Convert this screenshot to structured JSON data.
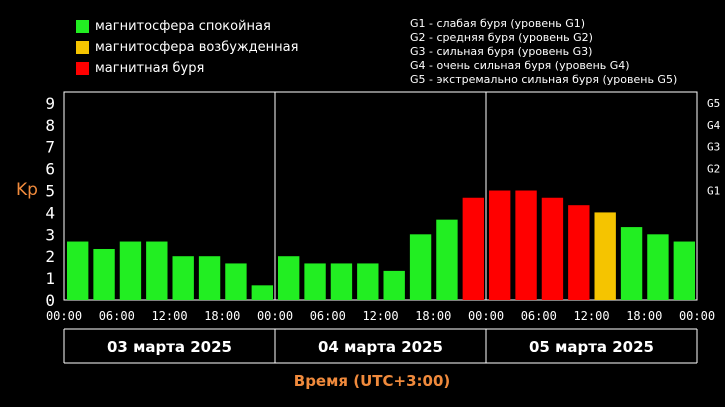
{
  "legend": {
    "quiet": {
      "label": "магнитосфера спокойная",
      "color": "#22ee22"
    },
    "excited": {
      "label": "магнитосфера возбужденная",
      "color": "#f5c400"
    },
    "storm": {
      "label": "магнитная буря",
      "color": "#ff0000"
    }
  },
  "g_levels": [
    "G1 - слабая буря (уровень G1)",
    "G2 - средняя буря (уровень G2)",
    "G3 - сильная буря (уровень G3)",
    "G4 - очень сильная буря (уровень G4)",
    "G5 - экстремально сильная буря (уровень G5)"
  ],
  "chart_data": {
    "type": "bar",
    "ylabel": "Kp",
    "xlabel": "Время (UTC+3:00)",
    "ylim": [
      0,
      9.5
    ],
    "yticks": [
      0,
      1,
      2,
      3,
      4,
      5,
      6,
      7,
      8,
      9
    ],
    "right_ticks": [
      {
        "label": "G1",
        "value": 5
      },
      {
        "label": "G2",
        "value": 6
      },
      {
        "label": "G3",
        "value": 7
      },
      {
        "label": "G4",
        "value": 8
      },
      {
        "label": "G5",
        "value": 9
      }
    ],
    "time_ticks": [
      "00:00",
      "06:00",
      "12:00",
      "18:00",
      "00:00",
      "06:00",
      "12:00",
      "18:00",
      "00:00",
      "06:00",
      "12:00",
      "18:00",
      "00:00"
    ],
    "days": [
      "03 марта 2025",
      "04 марта 2025",
      "05 марта 2025"
    ],
    "series": [
      {
        "values": [
          2.67,
          2.33,
          2.67,
          2.67,
          2.0,
          2.0,
          1.67,
          0.67,
          2.0,
          1.67,
          1.67,
          1.67,
          1.33,
          3.0,
          3.67,
          4.67,
          5.0,
          5.0,
          4.67,
          4.33,
          4.0,
          3.33,
          3.0,
          2.67
        ],
        "levels": [
          "quiet",
          "quiet",
          "quiet",
          "quiet",
          "quiet",
          "quiet",
          "quiet",
          "quiet",
          "quiet",
          "quiet",
          "quiet",
          "quiet",
          "quiet",
          "quiet",
          "quiet",
          "storm",
          "storm",
          "storm",
          "storm",
          "storm",
          "excited",
          "quiet",
          "quiet",
          "quiet"
        ]
      }
    ],
    "grid": false,
    "legend_position": "top-left"
  }
}
